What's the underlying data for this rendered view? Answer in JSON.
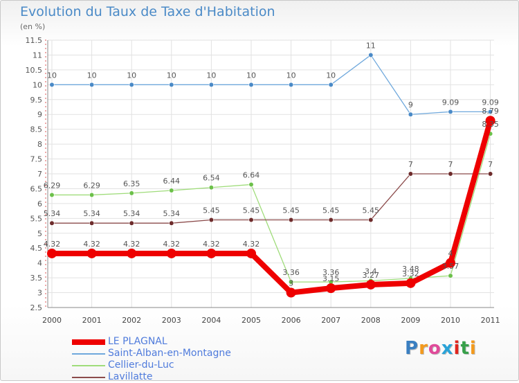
{
  "title": "Evolution du Taux de Taxe d'Habitation",
  "subtitle": "(en %)",
  "brand": {
    "text": "Proxiti",
    "colors": [
      "#3a7fc1",
      "#f39a1d",
      "#e04a9a",
      "#2aa3d8",
      "#e0261f",
      "#37a04a",
      "#f39a1d"
    ]
  },
  "chart_data": {
    "type": "line",
    "x": [
      "2000",
      "2001",
      "2002",
      "2003",
      "2004",
      "2005",
      "2006",
      "2007",
      "2008",
      "2009",
      "2010",
      "2011"
    ],
    "ylim": [
      2.5,
      11.5
    ],
    "yticks": [
      "2.5",
      "3",
      "3.5",
      "4",
      "4.5",
      "5",
      "5.5",
      "6",
      "6.5",
      "7",
      "7.5",
      "8",
      "8.5",
      "9",
      "9.5",
      "10",
      "10.5",
      "11",
      "11.5"
    ],
    "grid": true,
    "legend_position": "bottom-left",
    "series": [
      {
        "name": "Saint-Alban-en-Montagne",
        "color": "#6fa8dc",
        "marker": "#4a8ac7",
        "values": [
          10,
          10,
          10,
          10,
          10,
          10,
          10,
          10,
          11,
          9,
          9.09,
          9.09
        ],
        "labels": [
          "10",
          "10",
          "10",
          "10",
          "10",
          "10",
          "10",
          "10",
          "11",
          "9",
          "9.09",
          "9.09"
        ]
      },
      {
        "name": "Cellier-du-Luc",
        "color": "#9fdc7a",
        "marker": "#6cc04a",
        "values": [
          6.29,
          6.29,
          6.35,
          6.44,
          6.54,
          6.64,
          3.36,
          3.36,
          3.4,
          3.48,
          3.57,
          8.35
        ],
        "labels": [
          "6.29",
          "6.29",
          "6.35",
          "6.44",
          "6.54",
          "6.64",
          "3.36",
          "3.36",
          "3.4",
          "3.48",
          "3.57",
          "8.35"
        ]
      },
      {
        "name": "Lavillatte",
        "color": "#8b4a4a",
        "marker": "#6e2c2c",
        "values": [
          5.34,
          5.34,
          5.34,
          5.34,
          5.45,
          5.45,
          5.45,
          5.45,
          5.45,
          7,
          7,
          7
        ],
        "labels": [
          "5.34",
          "5.34",
          "5.34",
          "5.34",
          "5.45",
          "5.45",
          "5.45",
          "5.45",
          "5.45",
          "7",
          "7",
          "7"
        ]
      },
      {
        "name": "LE PLAGNAL",
        "color": "#ee0000",
        "marker": "#ee0000",
        "values": [
          4.32,
          4.32,
          4.32,
          4.32,
          4.32,
          4.32,
          3,
          3.15,
          3.27,
          3.32,
          4,
          8.79
        ],
        "labels": [
          "4.32",
          "4.32",
          "4.32",
          "4.32",
          "4.32",
          "4.32",
          "3",
          "3.15",
          "3.27",
          "3.32",
          "4",
          "8.79"
        ]
      }
    ],
    "legend_order": [
      "LE PLAGNAL",
      "Saint-Alban-en-Montagne",
      "Cellier-du-Luc",
      "Lavillatte"
    ]
  }
}
